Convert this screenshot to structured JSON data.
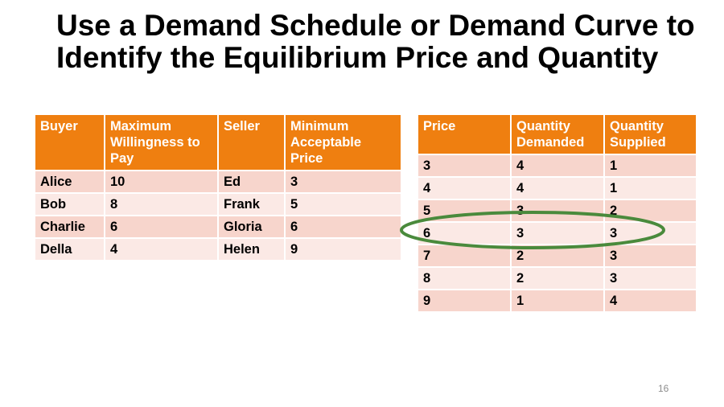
{
  "slide": {
    "title": "Use a Demand Schedule or Demand Curve to Identify the Equilibrium Price and Quantity",
    "page_number": "16"
  },
  "colors": {
    "header": "#ef7f10",
    "row_odd": "#f7d5cc",
    "row_even": "#fbe9e5",
    "highlight_ellipse": "#4a8a3c"
  },
  "buyers_sellers_table": {
    "headers": [
      "Buyer",
      "Maximum Willingness to Pay",
      "Seller",
      "Minimum Acceptable Price"
    ],
    "rows": [
      [
        "Alice",
        "10",
        "Ed",
        "3"
      ],
      [
        "Bob",
        "8",
        "Frank",
        "5"
      ],
      [
        "Charlie",
        "6",
        "Gloria",
        "6"
      ],
      [
        "Della",
        "4",
        "Helen",
        "9"
      ]
    ]
  },
  "schedule_table": {
    "headers": [
      "Price",
      "Quantity Demanded",
      "Quantity Supplied"
    ],
    "rows": [
      [
        "3",
        "4",
        "1"
      ],
      [
        "4",
        "4",
        "1"
      ],
      [
        "5",
        "3",
        "2"
      ],
      [
        "6",
        "3",
        "3"
      ],
      [
        "7",
        "2",
        "3"
      ],
      [
        "8",
        "2",
        "3"
      ],
      [
        "9",
        "1",
        "4"
      ]
    ],
    "highlighted_row_price": "6"
  }
}
